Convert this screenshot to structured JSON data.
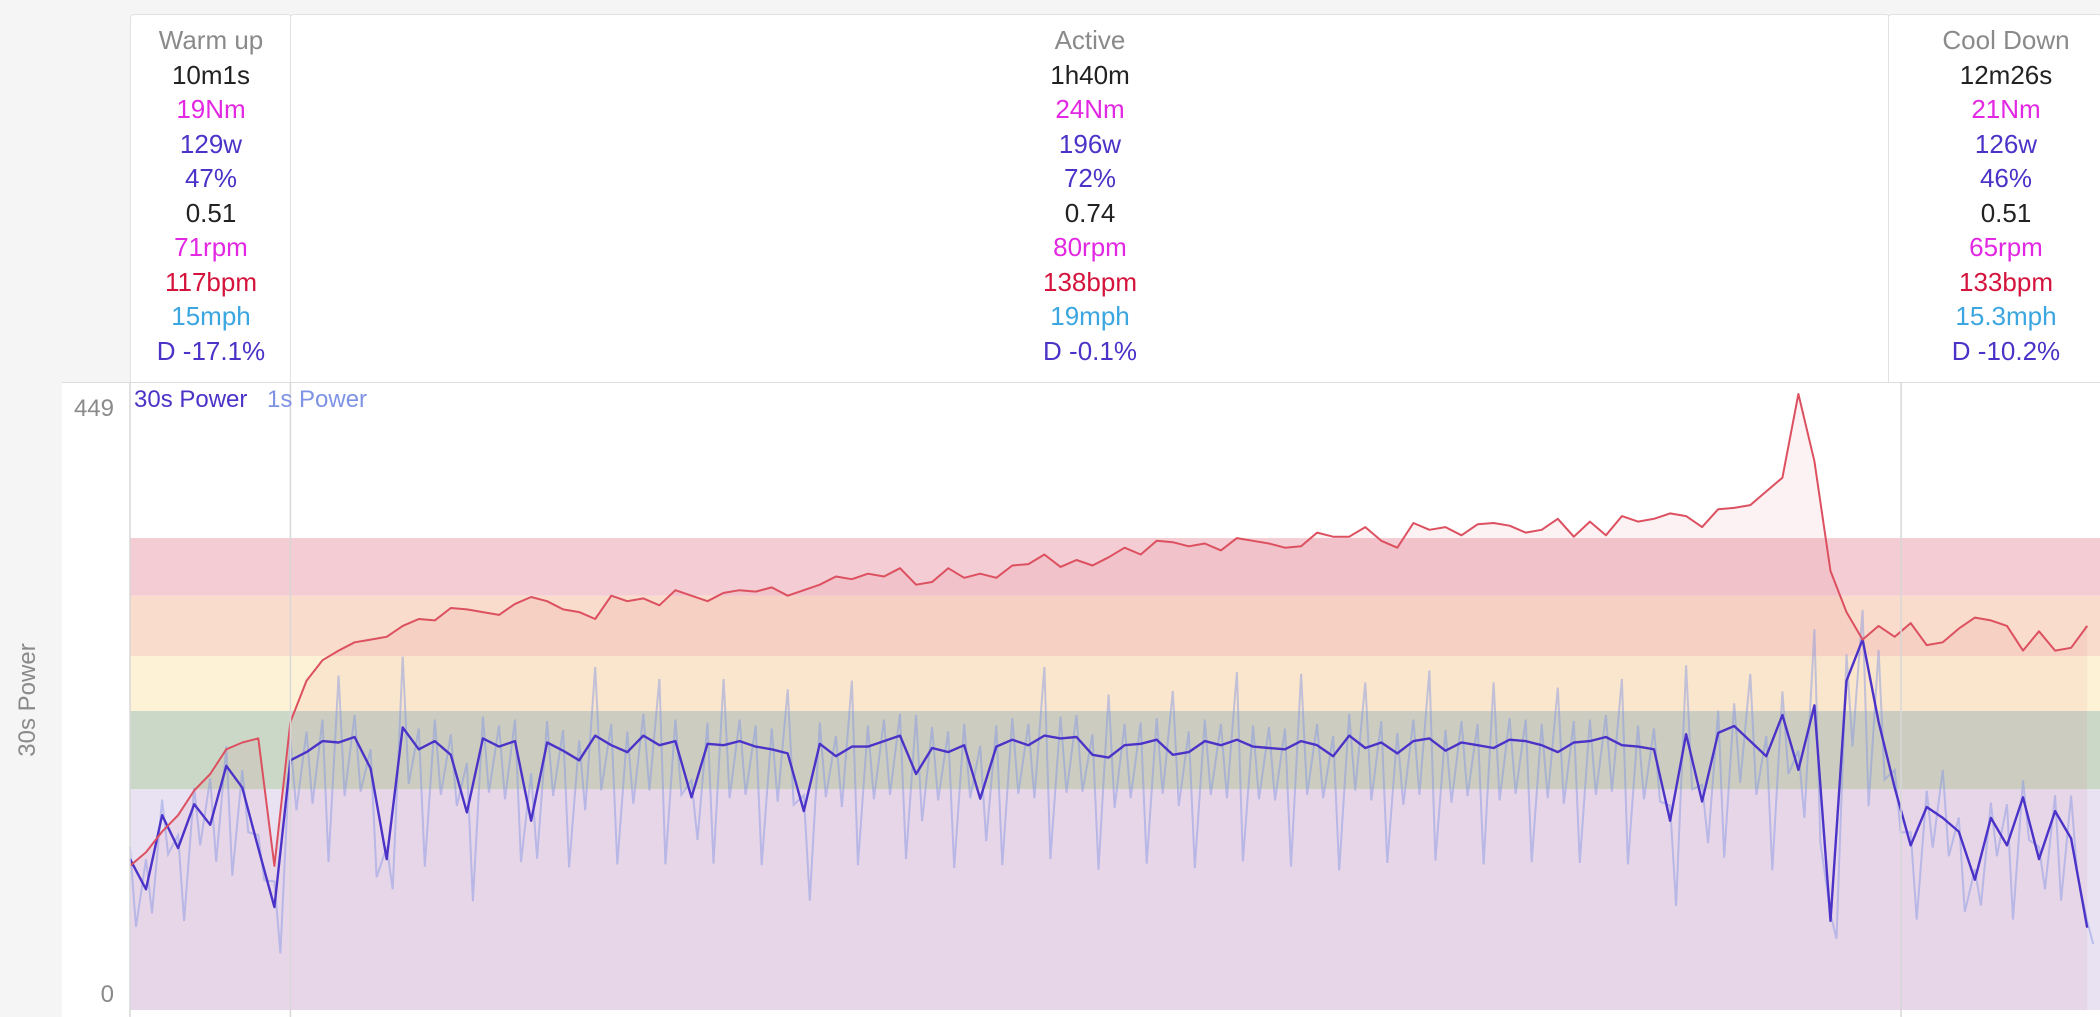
{
  "intervals": [
    {
      "label": "Warm up",
      "duration": "10m1s",
      "torque": "19Nm",
      "power": "129w",
      "intensity": "47%",
      "ratio": "0.51",
      "cadence": "71rpm",
      "heart_rate": "117bpm",
      "speed": "15mph",
      "decoupling": "D -17.1%"
    },
    {
      "label": "Active",
      "duration": "1h40m",
      "torque": "24Nm",
      "power": "196w",
      "intensity": "72%",
      "ratio": "0.74",
      "cadence": "80rpm",
      "heart_rate": "138bpm",
      "speed": "19mph",
      "decoupling": "D -0.1%"
    },
    {
      "label": "Cool Down",
      "duration": "12m26s",
      "torque": "21Nm",
      "power": "126w",
      "intensity": "46%",
      "ratio": "0.51",
      "cadence": "65rpm",
      "heart_rate": "133bpm",
      "speed": "15.3mph",
      "decoupling": "D -10.2%"
    }
  ],
  "colors": {
    "power_30s": "#4b33c8",
    "power_1s": "#7f93e4",
    "heart_rate": "#dc5060",
    "zones": [
      "#e9e2f3",
      "#cbd8c8",
      "#fdf2d6",
      "#f9dccb",
      "#f3cdd3"
    ]
  },
  "chart_data": {
    "type": "line",
    "ylabel": "30s Power",
    "ylim": [
      0,
      449
    ],
    "y_ticks": [
      449,
      0
    ],
    "x_range_minutes": [
      0,
      122.8
    ],
    "interval_boundaries_minutes": [
      10.0,
      110.4
    ],
    "legend": [
      "30s Power",
      "1s Power"
    ],
    "legend_position": "top-left",
    "zones": [
      {
        "from": 0,
        "to": 161
      },
      {
        "from": 161,
        "to": 218
      },
      {
        "from": 218,
        "to": 258
      },
      {
        "from": 258,
        "to": 302
      },
      {
        "from": 302,
        "to": 344
      }
    ],
    "series": [
      {
        "name": "30s Power",
        "x": [
          0,
          1,
          2,
          3,
          4,
          5,
          6,
          7,
          8,
          9,
          10,
          11,
          12,
          13,
          14,
          15,
          16,
          17,
          18,
          19,
          20,
          21,
          22,
          23,
          24,
          25,
          26,
          27,
          28,
          29,
          30,
          31,
          32,
          33,
          34,
          35,
          36,
          37,
          38,
          39,
          40,
          41,
          42,
          43,
          44,
          45,
          46,
          47,
          48,
          49,
          50,
          51,
          52,
          53,
          54,
          55,
          56,
          57,
          58,
          59,
          60,
          61,
          62,
          63,
          64,
          65,
          66,
          67,
          68,
          69,
          70,
          71,
          72,
          73,
          74,
          75,
          76,
          77,
          78,
          79,
          80,
          81,
          82,
          83,
          84,
          85,
          86,
          87,
          88,
          89,
          90,
          91,
          92,
          93,
          94,
          95,
          96,
          97,
          98,
          99,
          100,
          101,
          102,
          103,
          104,
          105,
          106,
          107,
          108,
          109,
          110,
          111,
          112,
          113,
          114,
          115,
          116,
          117,
          118,
          119,
          120,
          121,
          122
        ],
        "y": [
          110,
          88,
          142,
          118,
          150,
          135,
          178,
          162,
          118,
          75,
          182,
          188,
          196,
          195,
          199,
          176,
          110,
          206,
          190,
          196,
          186,
          144,
          198,
          192,
          196,
          138,
          195,
          189,
          182,
          200,
          193,
          188,
          200,
          193,
          196,
          155,
          194,
          193,
          196,
          192,
          190,
          187,
          145,
          194,
          185,
          192,
          192,
          196,
          200,
          172,
          191,
          188,
          193,
          154,
          192,
          197,
          193,
          200,
          198,
          199,
          186,
          184,
          193,
          194,
          197,
          186,
          188,
          196,
          193,
          197,
          192,
          191,
          190,
          196,
          193,
          185,
          200,
          191,
          195,
          187,
          196,
          198,
          189,
          195,
          193,
          191,
          197,
          196,
          193,
          188,
          195,
          196,
          199,
          193,
          192,
          190,
          138,
          201,
          152,
          202,
          207,
          196,
          185,
          215,
          175,
          222,
          65,
          240,
          270,
          210,
          162,
          120,
          148,
          140,
          130,
          95,
          140,
          120,
          155,
          110,
          145,
          125,
          60
        ]
      },
      {
        "name": "Heart Rate",
        "x": [
          0,
          1,
          2,
          3,
          4,
          5,
          6,
          7,
          8,
          9,
          10,
          11,
          12,
          13,
          14,
          15,
          16,
          17,
          18,
          19,
          20,
          21,
          22,
          23,
          24,
          25,
          26,
          27,
          28,
          29,
          30,
          31,
          32,
          33,
          34,
          35,
          36,
          37,
          38,
          39,
          40,
          41,
          42,
          43,
          44,
          45,
          46,
          47,
          48,
          49,
          50,
          51,
          52,
          53,
          54,
          55,
          56,
          57,
          58,
          59,
          60,
          61,
          62,
          63,
          64,
          65,
          66,
          67,
          68,
          69,
          70,
          71,
          72,
          73,
          74,
          75,
          76,
          77,
          78,
          79,
          80,
          81,
          82,
          83,
          84,
          85,
          86,
          87,
          88,
          89,
          90,
          91,
          92,
          93,
          94,
          95,
          96,
          97,
          98,
          99,
          100,
          101,
          102,
          103,
          104,
          105,
          106,
          107,
          108,
          109,
          110,
          111,
          112,
          113,
          114,
          115,
          116,
          117,
          118,
          119,
          120,
          121,
          122
        ],
        "y": [
          105,
          115,
          130,
          142,
          160,
          172,
          190,
          195,
          198,
          105,
          210,
          240,
          255,
          262,
          268,
          270,
          272,
          280,
          285,
          284,
          293,
          292,
          290,
          288,
          296,
          301,
          298,
          292,
          290,
          285,
          302,
          298,
          300,
          295,
          306,
          302,
          298,
          304,
          306,
          305,
          308,
          302,
          306,
          310,
          316,
          314,
          318,
          316,
          322,
          310,
          312,
          322,
          315,
          318,
          315,
          324,
          325,
          332,
          323,
          328,
          324,
          330,
          337,
          332,
          342,
          341,
          338,
          340,
          335,
          344,
          342,
          340,
          337,
          338,
          348,
          345,
          345,
          352,
          342,
          337,
          355,
          350,
          352,
          346,
          354,
          355,
          353,
          348,
          350,
          358,
          345,
          356,
          346,
          360,
          356,
          358,
          362,
          360,
          352,
          365,
          366,
          368,
          378,
          388,
          449,
          400,
          320,
          290,
          270,
          280,
          272,
          282,
          266,
          268,
          278,
          286,
          284,
          280,
          262,
          276,
          262,
          264,
          280
        ]
      }
    ]
  }
}
